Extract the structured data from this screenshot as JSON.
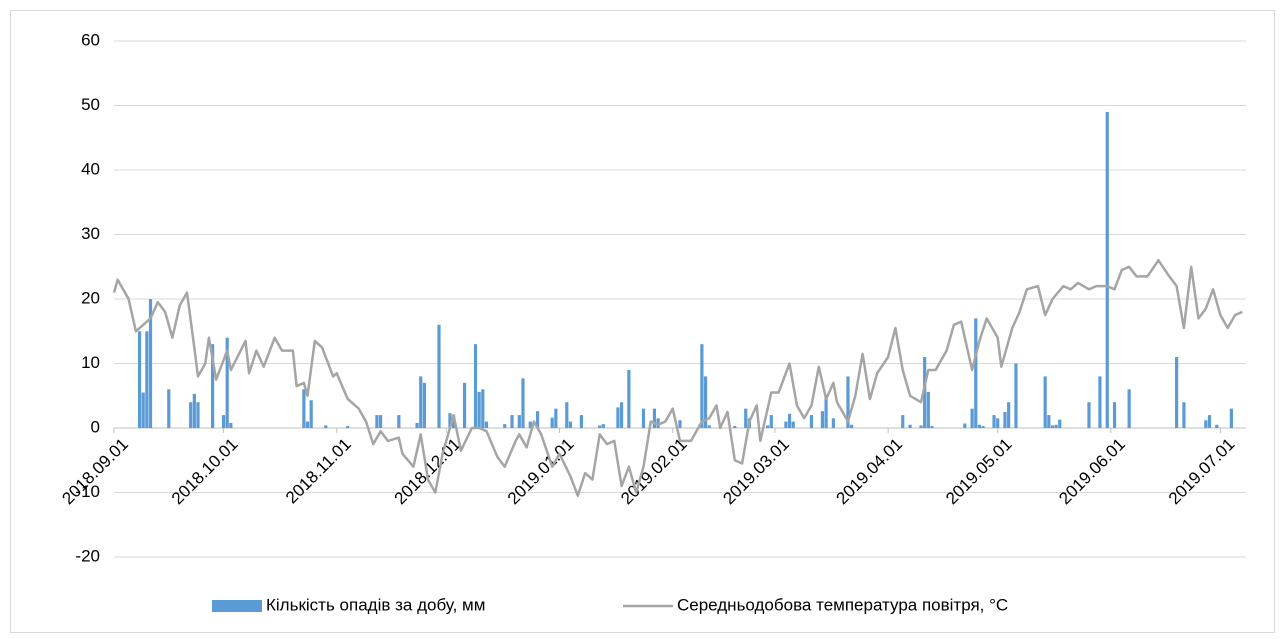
{
  "chart_data": {
    "type": "bar-line",
    "xlim": [
      "2018.09.01",
      "2019.07.08"
    ],
    "xticks": [
      "2018.09.01",
      "2018.10.01",
      "2018.11.01",
      "2018.12.01",
      "2019.01.01",
      "2019.02.01",
      "2019.03.01",
      "2019.04.01",
      "2019.05.01",
      "2019.06.01",
      "2019.07.01"
    ],
    "ylim": [
      -20,
      60
    ],
    "yticks": [
      -20,
      -10,
      0,
      10,
      20,
      30,
      40,
      50,
      60
    ],
    "grid": true,
    "legend": "bottom",
    "series": [
      {
        "name": "Кількість опадів за добу, мм",
        "type": "bar",
        "color": "#5b9bd5",
        "x": [
          "2018.09.08",
          "2018.09.09",
          "2018.09.10",
          "2018.09.11",
          "2018.09.16",
          "2018.09.22",
          "2018.09.23",
          "2018.09.24",
          "2018.09.28",
          "2018.10.01",
          "2018.10.02",
          "2018.10.03",
          "2018.10.23",
          "2018.10.24",
          "2018.10.25",
          "2018.10.29",
          "2018.11.04",
          "2018.11.12",
          "2018.11.13",
          "2018.11.18",
          "2018.11.23",
          "2018.11.24",
          "2018.11.25",
          "2018.11.29",
          "2018.12.02",
          "2018.12.03",
          "2018.12.06",
          "2018.12.09",
          "2018.12.10",
          "2018.12.11",
          "2018.12.12",
          "2018.12.17",
          "2018.12.19",
          "2018.12.21",
          "2018.12.22",
          "2018.12.24",
          "2018.12.26",
          "2018.12.30",
          "2018.12.31",
          "2019.01.03",
          "2019.01.04",
          "2019.01.07",
          "2019.01.12",
          "2019.01.13",
          "2019.01.17",
          "2019.01.18",
          "2019.01.20",
          "2019.01.24",
          "2019.01.27",
          "2019.01.28",
          "2019.02.03",
          "2019.02.09",
          "2019.02.10",
          "2019.02.11",
          "2019.02.18",
          "2019.02.21",
          "2019.02.22",
          "2019.02.27",
          "2019.02.28",
          "2019.03.04",
          "2019.03.05",
          "2019.03.06",
          "2019.03.11",
          "2019.03.14",
          "2019.03.15",
          "2019.03.17",
          "2019.03.21",
          "2019.03.22",
          "2019.04.05",
          "2019.04.07",
          "2019.04.10",
          "2019.04.11",
          "2019.04.12",
          "2019.04.13",
          "2019.04.22",
          "2019.04.24",
          "2019.04.25",
          "2019.04.26",
          "2019.04.27",
          "2019.04.30",
          "2019.05.01",
          "2019.05.03",
          "2019.05.04",
          "2019.05.06",
          "2019.05.14",
          "2019.05.15",
          "2019.05.16",
          "2019.05.17",
          "2019.05.18",
          "2019.05.26",
          "2019.05.29",
          "2019.05.31",
          "2019.06.02",
          "2019.06.06",
          "2019.06.19",
          "2019.06.21",
          "2019.06.27",
          "2019.06.28",
          "2019.06.30",
          "2019.07.04"
        ],
        "values": [
          15,
          5.5,
          15,
          20,
          6,
          4,
          5.3,
          4,
          13,
          2,
          14,
          0.8,
          6,
          1,
          4.3,
          0.4,
          0.3,
          2,
          2,
          2,
          0.8,
          8,
          7,
          16,
          2.3,
          2,
          7,
          13,
          5.6,
          6,
          1,
          0.6,
          2,
          2,
          7.7,
          1,
          2.6,
          1.6,
          3,
          4,
          1,
          2,
          0.4,
          0.6,
          3.2,
          4,
          9,
          3,
          3,
          1.5,
          1.2,
          13,
          8,
          0.4,
          0.3,
          3,
          1.5,
          0.4,
          2,
          1,
          2.2,
          1,
          2,
          2.6,
          5,
          1.5,
          8,
          0.5,
          2,
          0.5,
          0.4,
          11,
          5.6,
          0.3,
          0.7,
          3,
          17,
          0.5,
          0.3,
          2,
          1.5,
          2.5,
          4,
          10,
          8,
          2,
          0.4,
          0.5,
          1.3,
          4,
          8,
          49,
          4,
          6,
          11,
          4,
          1.2,
          2,
          0.5,
          3
        ]
      },
      {
        "name": "Середньодобова температура повітря, °C",
        "type": "line",
        "color": "#a5a5a5",
        "x": [
          "2018.09.01",
          "2018.09.02",
          "2018.09.05",
          "2018.09.07",
          "2018.09.11",
          "2018.09.13",
          "2018.09.15",
          "2018.09.17",
          "2018.09.19",
          "2018.09.21",
          "2018.09.23",
          "2018.09.24",
          "2018.09.26",
          "2018.09.27",
          "2018.09.29",
          "2018.10.02",
          "2018.10.03",
          "2018.10.07",
          "2018.10.08",
          "2018.10.10",
          "2018.10.12",
          "2018.10.15",
          "2018.10.17",
          "2018.10.20",
          "2018.10.21",
          "2018.10.23",
          "2018.10.24",
          "2018.10.26",
          "2018.10.28",
          "2018.10.31",
          "2018.11.01",
          "2018.11.04",
          "2018.11.07",
          "2018.11.09",
          "2018.11.11",
          "2018.11.13",
          "2018.11.15",
          "2018.11.18",
          "2018.11.19",
          "2018.11.22",
          "2018.11.24",
          "2018.11.26",
          "2018.11.28",
          "2018.11.30",
          "2018.12.03",
          "2018.12.05",
          "2018.12.08",
          "2018.12.10",
          "2018.12.12",
          "2018.12.15",
          "2018.12.17",
          "2018.12.20",
          "2018.12.21",
          "2018.12.23",
          "2018.12.25",
          "2018.12.27",
          "2018.12.30",
          "2019.01.01",
          "2019.01.04",
          "2019.01.06",
          "2019.01.08",
          "2019.01.10",
          "2019.01.12",
          "2019.01.14",
          "2019.01.16",
          "2019.01.18",
          "2019.01.20",
          "2019.01.22",
          "2019.01.24",
          "2019.01.26",
          "2019.01.28",
          "2019.01.30",
          "2019.02.01",
          "2019.02.03",
          "2019.02.06",
          "2019.02.09",
          "2019.02.11",
          "2019.02.13",
          "2019.02.14",
          "2019.02.16",
          "2019.02.18",
          "2019.02.20",
          "2019.02.22",
          "2019.02.24",
          "2019.02.25",
          "2019.02.28",
          "2019.03.02",
          "2019.03.05",
          "2019.03.07",
          "2019.03.09",
          "2019.03.11",
          "2019.03.13",
          "2019.03.15",
          "2019.03.17",
          "2019.03.18",
          "2019.03.21",
          "2019.03.23",
          "2019.03.25",
          "2019.03.27",
          "2019.03.29",
          "2019.04.01",
          "2019.04.03",
          "2019.04.05",
          "2019.04.07",
          "2019.04.10",
          "2019.04.12",
          "2019.04.14",
          "2019.04.17",
          "2019.04.19",
          "2019.04.21",
          "2019.04.24",
          "2019.04.26",
          "2019.04.28",
          "2019.05.01",
          "2019.05.02",
          "2019.05.05",
          "2019.05.07",
          "2019.05.09",
          "2019.05.12",
          "2019.05.14",
          "2019.05.16",
          "2019.05.19",
          "2019.05.21",
          "2019.05.23",
          "2019.05.26",
          "2019.05.28",
          "2019.05.31",
          "2019.06.02",
          "2019.06.04",
          "2019.06.06",
          "2019.06.08",
          "2019.06.11",
          "2019.06.14",
          "2019.06.17",
          "2019.06.19",
          "2019.06.21",
          "2019.06.23",
          "2019.06.25",
          "2019.06.27",
          "2019.06.29",
          "2019.07.01",
          "2019.07.03",
          "2019.07.05",
          "2019.07.07"
        ],
        "values": [
          21,
          23,
          20,
          15,
          17,
          19.5,
          18,
          14,
          19,
          21,
          12.5,
          8,
          10,
          14,
          7.5,
          12,
          9,
          13.5,
          8.5,
          12,
          9.5,
          14,
          12,
          12,
          6.5,
          7,
          5,
          13.5,
          12.5,
          8,
          8.5,
          4.5,
          3,
          1,
          -2.5,
          -0.5,
          -2,
          -1.5,
          -4,
          -6,
          -1,
          -8,
          -10,
          -4,
          2,
          -3.5,
          0,
          0,
          -0.5,
          -4.5,
          -6,
          -2,
          -1,
          -3,
          1,
          -1,
          -6,
          -4,
          -7.5,
          -10.5,
          -7,
          -8,
          -1,
          -2.5,
          -2,
          -9,
          -6,
          -10,
          -6,
          1,
          0.5,
          1,
          3,
          -2,
          -2,
          1,
          1.5,
          3.5,
          0,
          2.5,
          -5,
          -5.5,
          1,
          3.5,
          -2,
          5.5,
          5.5,
          10,
          3.5,
          1.5,
          3.5,
          9.5,
          4.5,
          7,
          4,
          1,
          5,
          11.5,
          4.5,
          8.5,
          11,
          15.5,
          9,
          5,
          4,
          9,
          9,
          12,
          16,
          16.5,
          9,
          13.5,
          17,
          14,
          9.5,
          15.5,
          18,
          21.5,
          22,
          17.5,
          20,
          22,
          21.5,
          22.5,
          21.5,
          22,
          22,
          21.5,
          24.5,
          25,
          23.5,
          23.5,
          26,
          23.5,
          22,
          15.5,
          25,
          17,
          18.5,
          21.5,
          17.5,
          15.5,
          17.5,
          18
        ]
      }
    ]
  }
}
